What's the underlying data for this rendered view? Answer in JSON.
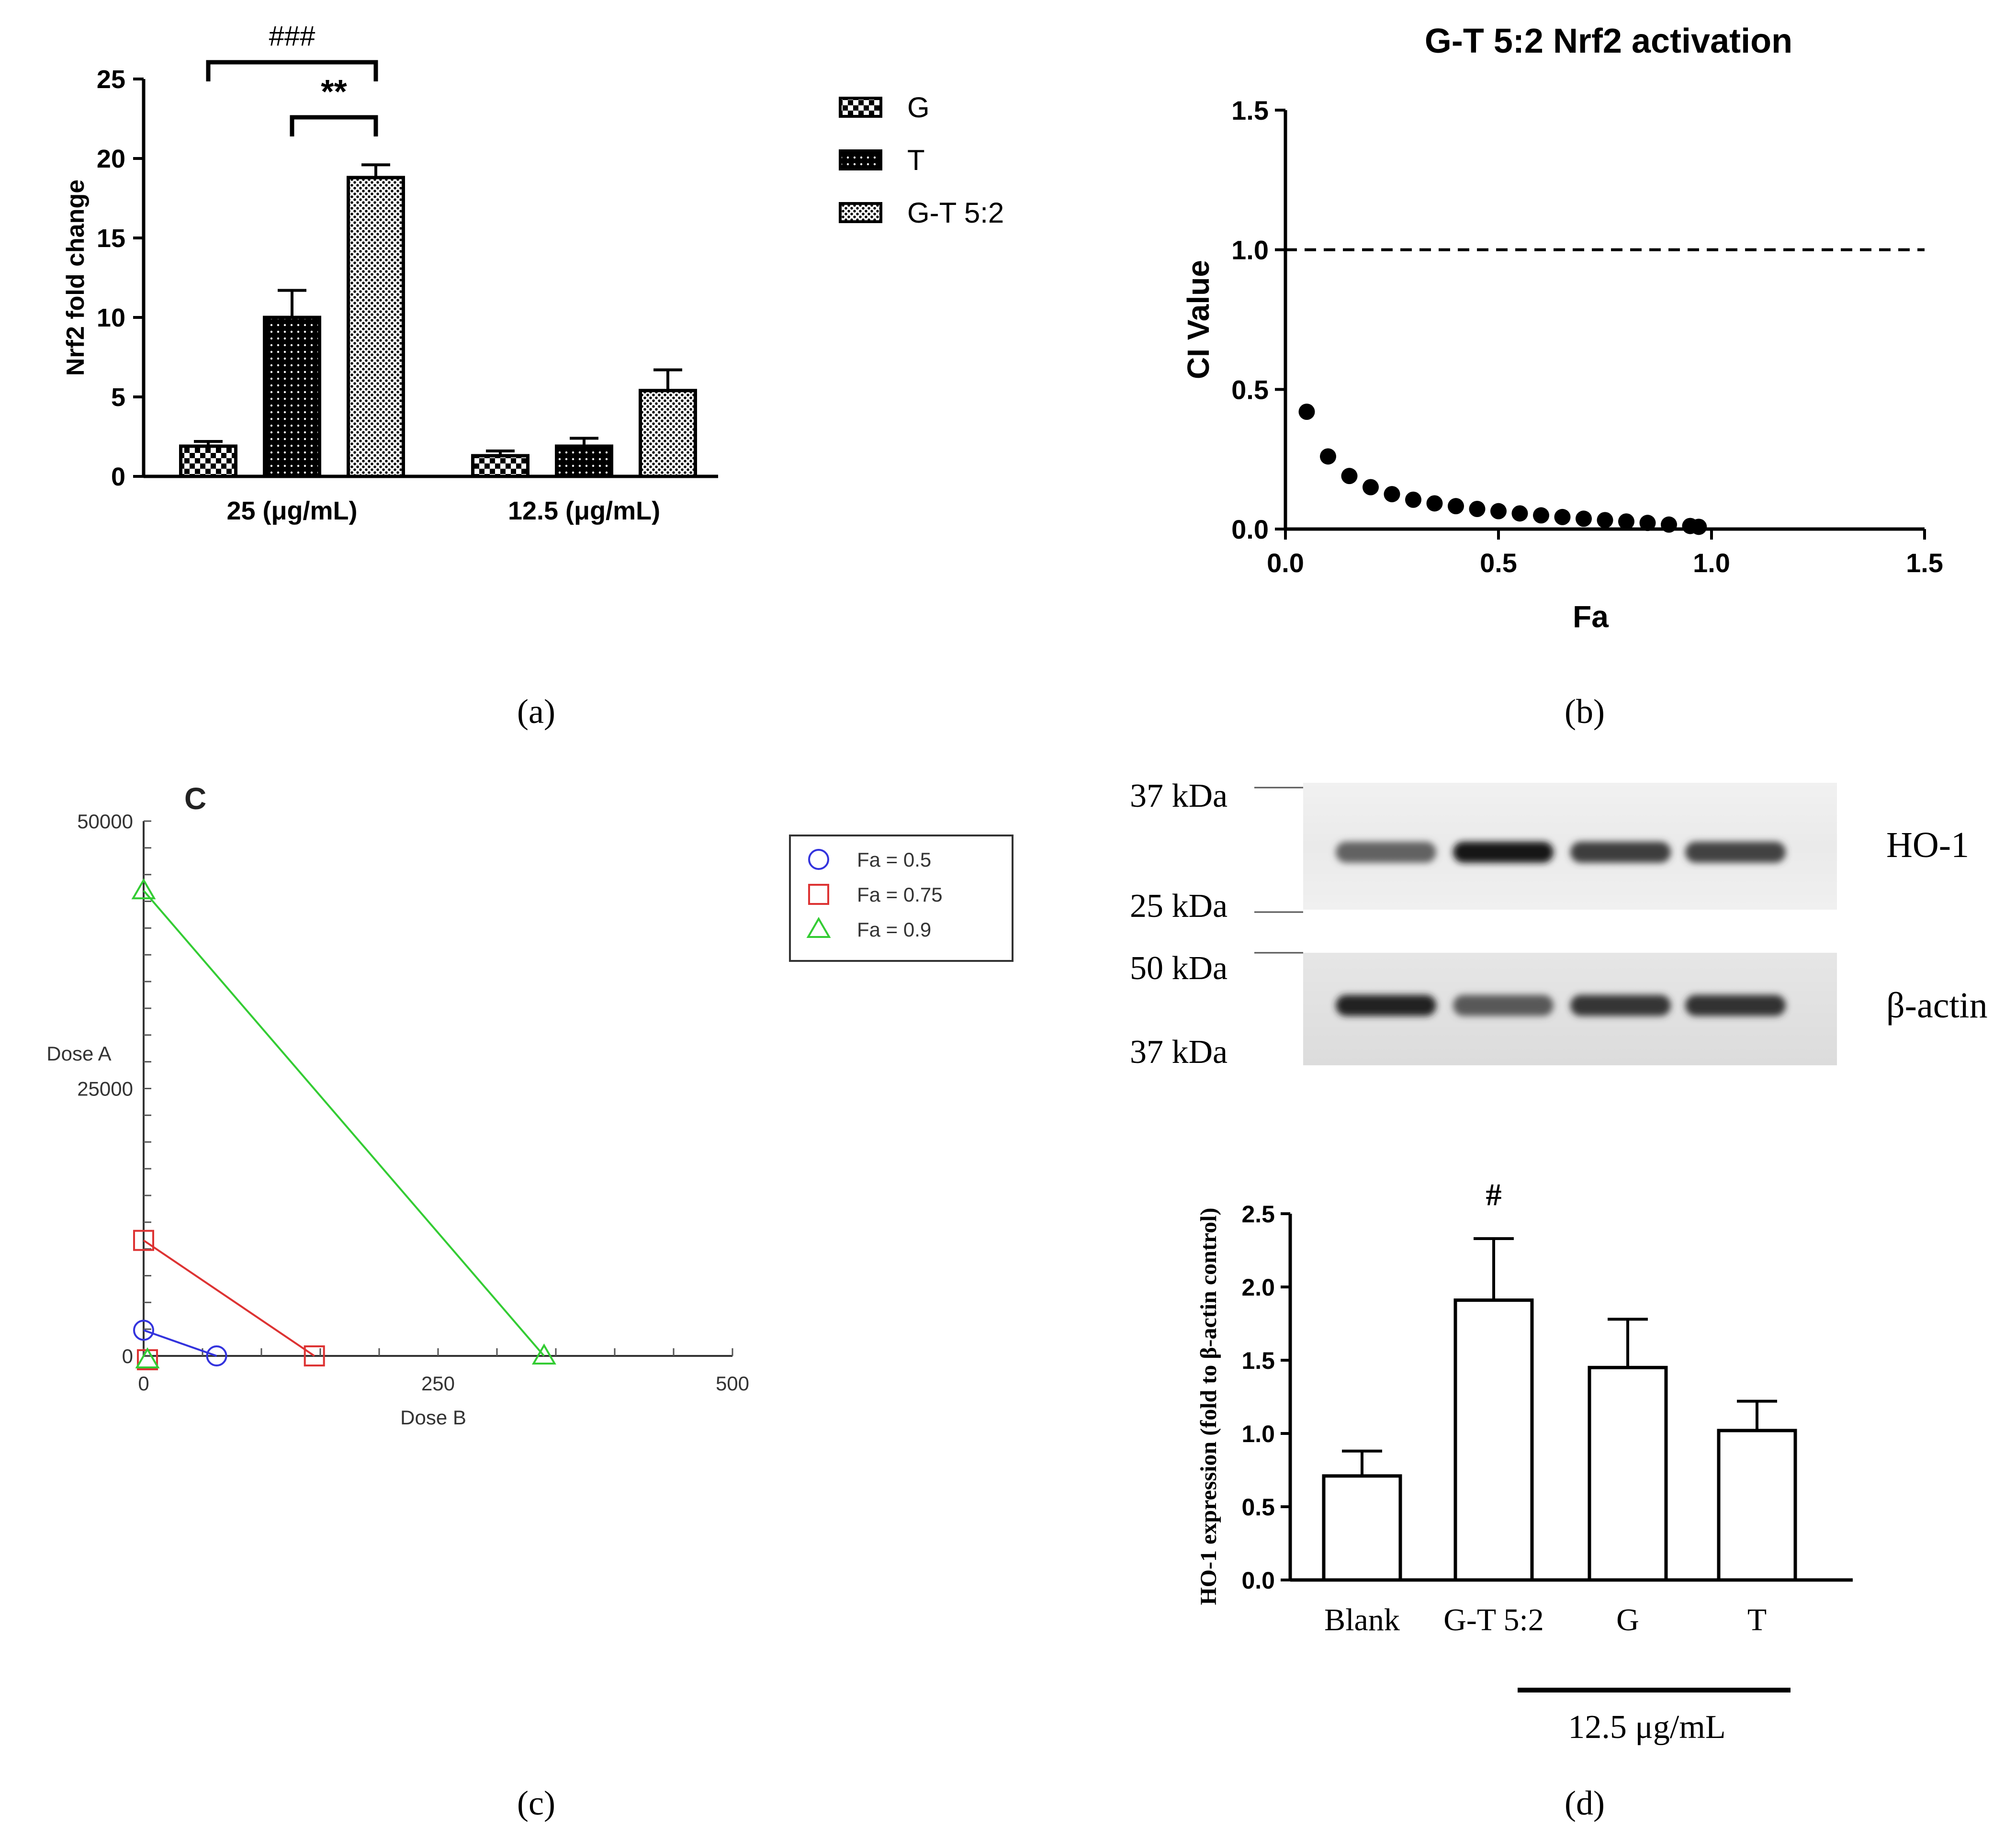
{
  "panel_labels": [
    "(a)",
    "(b)",
    "(c)",
    "(d)"
  ],
  "colors": {
    "ink": "#000000",
    "fa_0_5": "#3333dd",
    "fa_0_75": "#dd3333",
    "fa_0_9": "#33cc33",
    "axis_gray": "#555555"
  },
  "chart_data": [
    {
      "panel": "(a)",
      "type": "bar",
      "title": "",
      "xlabel": "",
      "ylabel": "Nrf2 fold change",
      "ylim": [
        0,
        25
      ],
      "yticks": [
        0,
        5,
        10,
        15,
        20,
        25
      ],
      "categories": [
        "25 (μg/mL)",
        "12.5 (μg/mL)"
      ],
      "series": [
        {
          "name": "G",
          "values": [
            1.9,
            1.3
          ],
          "errors": [
            0.3,
            0.3
          ],
          "pattern": "checker"
        },
        {
          "name": "T",
          "values": [
            10.0,
            1.9
          ],
          "errors": [
            1.7,
            0.5
          ],
          "pattern": "dots-dark"
        },
        {
          "name": "G-T 5:2",
          "values": [
            18.8,
            5.4
          ],
          "errors": [
            0.8,
            1.3
          ],
          "pattern": "dots-light"
        }
      ],
      "legend_position": "right",
      "annotations": [
        {
          "text": "###",
          "from_series": "G",
          "to_series": "G-T 5:2",
          "category": "25 (μg/mL)"
        },
        {
          "text": "**",
          "from_series": "T",
          "to_series": "G-T 5:2",
          "category": "25 (μg/mL)"
        }
      ]
    },
    {
      "panel": "(b)",
      "type": "scatter",
      "title": "G-T 5:2 Nrf2 activation",
      "xlabel": "Fa",
      "ylabel": "CI Value",
      "xlim": [
        0,
        1.5
      ],
      "ylim": [
        0,
        1.5
      ],
      "xticks": [
        "0.0",
        "0.5",
        "1.0",
        "1.5"
      ],
      "yticks": [
        "0.0",
        "0.5",
        "1.0",
        "1.5"
      ],
      "reference_line": {
        "y": 1.0,
        "style": "dashed"
      },
      "x": [
        0.05,
        0.1,
        0.15,
        0.2,
        0.25,
        0.3,
        0.35,
        0.4,
        0.45,
        0.5,
        0.55,
        0.6,
        0.65,
        0.7,
        0.75,
        0.8,
        0.85,
        0.9,
        0.95,
        0.97
      ],
      "y": [
        0.42,
        0.26,
        0.19,
        0.15,
        0.125,
        0.105,
        0.092,
        0.082,
        0.072,
        0.064,
        0.056,
        0.049,
        0.043,
        0.037,
        0.032,
        0.027,
        0.022,
        0.016,
        0.011,
        0.008
      ]
    },
    {
      "panel": "(c)",
      "type": "line",
      "title": "C",
      "xlabel": "Dose B",
      "ylabel": "Dose A",
      "xlim": [
        0,
        500
      ],
      "ylim": [
        0,
        50000
      ],
      "xticks": [
        "0",
        "250",
        "500"
      ],
      "yticks": [
        "0",
        "25000",
        "50000"
      ],
      "legend_position": "right",
      "series": [
        {
          "name": "Fa = 0.5",
          "marker": "circle",
          "points": [
            [
              0,
              2400
            ],
            [
              62,
              0
            ]
          ]
        },
        {
          "name": "Fa = 0.75",
          "marker": "square",
          "points": [
            [
              0,
              10800
            ],
            [
              145,
              0
            ]
          ]
        },
        {
          "name": "Fa = 0.9",
          "marker": "triangle",
          "points": [
            [
              0,
              43500
            ],
            [
              340,
              0
            ]
          ]
        }
      ],
      "extra_markers": [
        {
          "series": "Fa = 0.75",
          "marker": "square",
          "point": [
            0,
            0
          ]
        },
        {
          "series": "Fa = 0.9",
          "marker": "triangle",
          "point": [
            0,
            0
          ]
        }
      ]
    },
    {
      "panel": "(d)",
      "type": "bar",
      "title": "",
      "xlabel": "",
      "ylabel": "HO-1 expression (fold to β-actin control)",
      "ylim": [
        0,
        2.5
      ],
      "yticks": [
        "0.0",
        "0.5",
        "1.0",
        "1.5",
        "2.0",
        "2.5"
      ],
      "categories": [
        "Blank",
        "G-T 5:2",
        "G",
        "T"
      ],
      "values": [
        0.71,
        1.91,
        1.45,
        1.02
      ],
      "errors": [
        0.17,
        0.42,
        0.33,
        0.2
      ],
      "annotations": [
        {
          "text": "#",
          "category": "G-T 5:2"
        }
      ],
      "group_label": {
        "text": "12.5 μg/mL",
        "categories": [
          "G-T 5:2",
          "G",
          "T"
        ]
      },
      "blot": {
        "lanes": 4,
        "bands": [
          {
            "name": "HO-1",
            "intensity": [
              0.55,
              0.95,
              0.75,
              0.72
            ]
          },
          {
            "name": "β-actin",
            "intensity": [
              0.9,
              0.6,
              0.8,
              0.82
            ]
          }
        ],
        "markers": [
          "37 kDa",
          "25 kDa",
          "50 kDa",
          "37 kDa"
        ]
      }
    }
  ]
}
